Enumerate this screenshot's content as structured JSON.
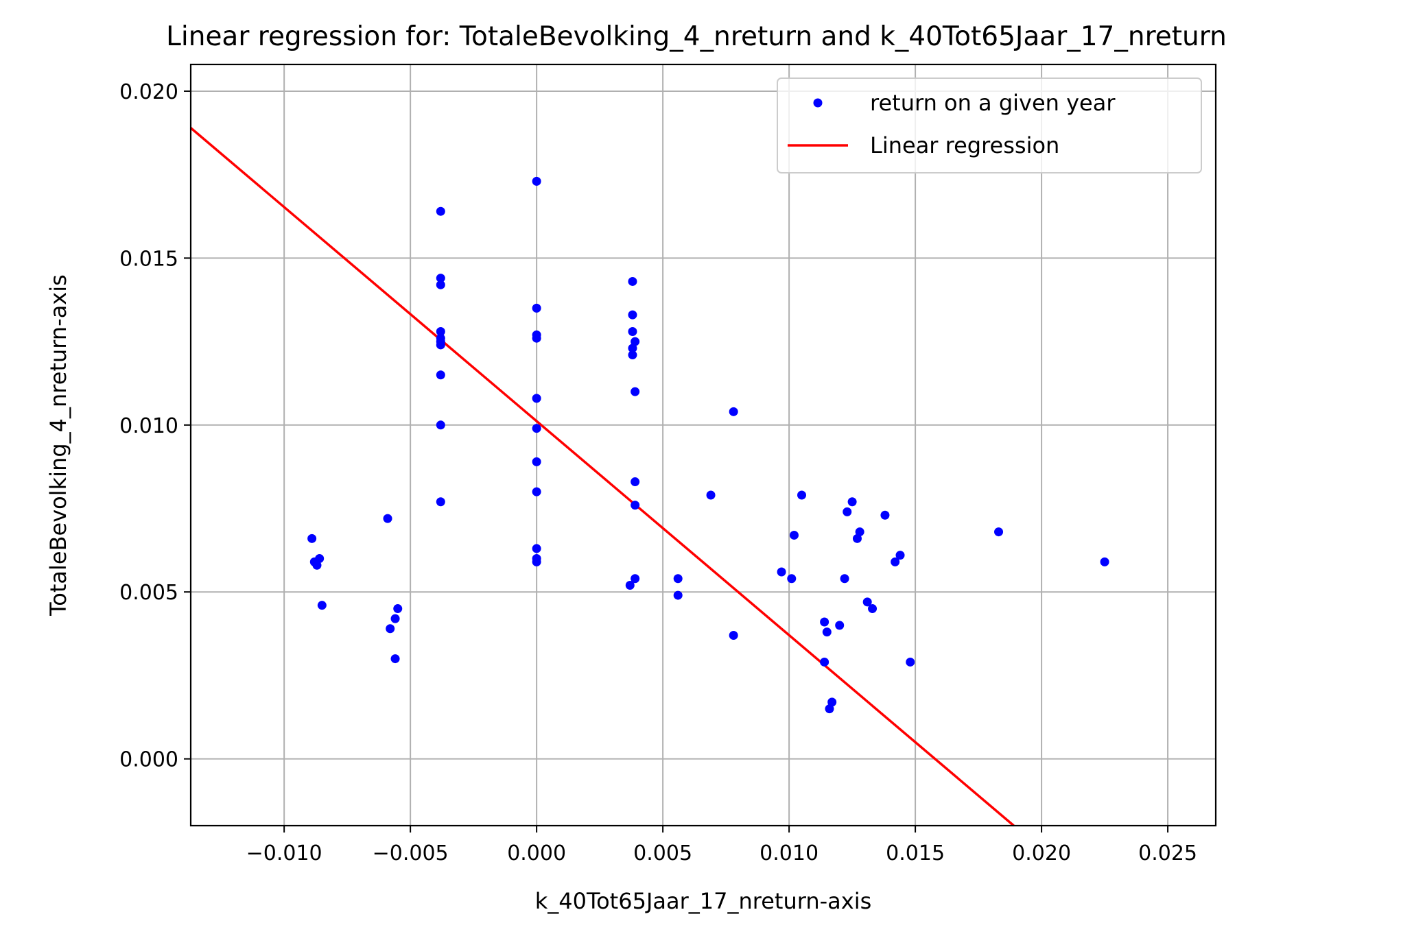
{
  "chart_data": {
    "type": "scatter",
    "title": "Linear regression for: TotaleBevolking_4_nreturn and k_40Tot65Jaar_17_nreturn",
    "xlabel": "k_40Tot65Jaar_17_nreturn-axis",
    "ylabel": "TotaleBevolking_4_nreturn-axis",
    "xlim": [
      -0.0137,
      0.0269
    ],
    "ylim": [
      -0.002,
      0.0208
    ],
    "xticks": [
      -0.01,
      -0.005,
      0.0,
      0.005,
      0.01,
      0.015,
      0.02,
      0.025
    ],
    "xtick_labels": [
      "−0.010",
      "−0.005",
      "0.000",
      "0.005",
      "0.010",
      "0.015",
      "0.020",
      "0.025"
    ],
    "yticks": [
      0.0,
      0.005,
      0.01,
      0.015,
      0.02
    ],
    "ytick_labels": [
      "0.000",
      "0.005",
      "0.010",
      "0.015",
      "0.020"
    ],
    "grid": true,
    "legend": {
      "position": "upper-right",
      "entries": [
        "return on a given year",
        "Linear regression"
      ]
    },
    "colors": {
      "points": "#0000ff",
      "line": "#ff0000"
    },
    "series": [
      {
        "name": "return on a given year",
        "kind": "scatter",
        "x": [
          -0.0089,
          -0.0088,
          -0.0087,
          -0.0086,
          -0.0085,
          -0.0059,
          -0.0058,
          -0.0056,
          -0.0055,
          -0.0056,
          -0.0038,
          -0.0038,
          -0.0038,
          -0.0038,
          -0.0038,
          -0.0038,
          -0.0038,
          -0.0038,
          -0.0038,
          -0.0038,
          0.0,
          0.0,
          0.0,
          0.0,
          0.0,
          0.0,
          0.0,
          0.0,
          0.0,
          0.0,
          0.0,
          0.0038,
          0.0038,
          0.0038,
          0.0039,
          0.0038,
          0.0038,
          0.0039,
          0.0039,
          0.0039,
          0.0039,
          0.0037,
          0.0056,
          0.0056,
          0.0069,
          0.0078,
          0.0078,
          0.0097,
          0.0101,
          0.0102,
          0.0105,
          0.0114,
          0.0114,
          0.0115,
          0.0116,
          0.0117,
          0.012,
          0.0122,
          0.0123,
          0.0125,
          0.0127,
          0.0128,
          0.0131,
          0.0133,
          0.0138,
          0.0142,
          0.0144,
          0.0148,
          0.0183,
          0.0225
        ],
        "y": [
          0.0066,
          0.0059,
          0.0058,
          0.006,
          0.0046,
          0.0072,
          0.0039,
          0.0042,
          0.0045,
          0.003,
          0.0164,
          0.0144,
          0.0142,
          0.0128,
          0.0125,
          0.0124,
          0.0115,
          0.01,
          0.0077,
          0.0126,
          0.0173,
          0.0135,
          0.0127,
          0.0126,
          0.0108,
          0.0099,
          0.0089,
          0.008,
          0.0063,
          0.006,
          0.0059,
          0.0143,
          0.0133,
          0.0128,
          0.0125,
          0.0123,
          0.0121,
          0.011,
          0.0083,
          0.0076,
          0.0054,
          0.0052,
          0.0054,
          0.0049,
          0.0079,
          0.0104,
          0.0037,
          0.0056,
          0.0054,
          0.0067,
          0.0079,
          0.0041,
          0.0029,
          0.0038,
          0.0015,
          0.0017,
          0.004,
          0.0054,
          0.0074,
          0.0077,
          0.0066,
          0.0068,
          0.0047,
          0.0045,
          0.0073,
          0.0059,
          0.0061,
          0.0029,
          0.0068,
          0.0059
        ]
      },
      {
        "name": "Linear regression",
        "kind": "line",
        "x": [
          -0.0137,
          0.0189
        ],
        "y": [
          0.0189,
          -0.002
        ]
      }
    ]
  }
}
